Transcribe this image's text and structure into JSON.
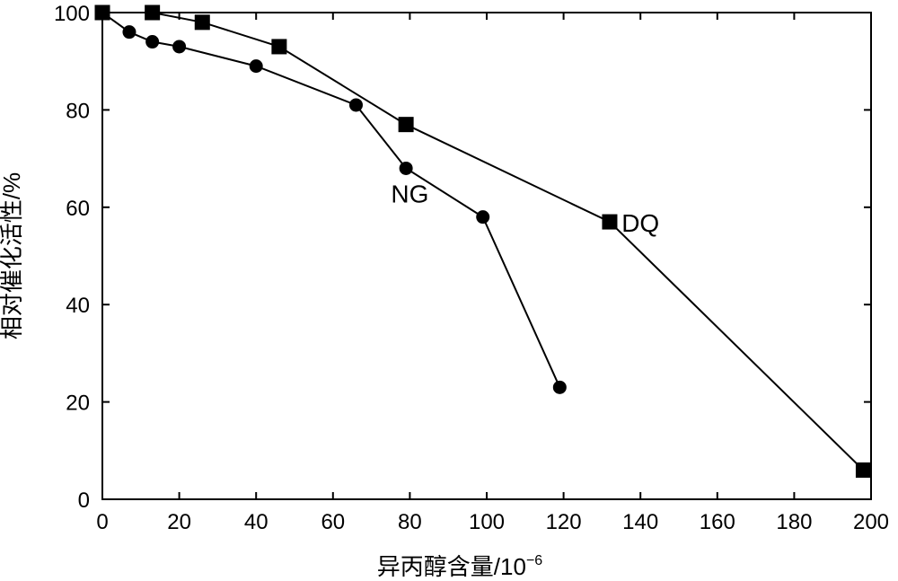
{
  "chart_data": {
    "type": "line",
    "title": "",
    "xlabel": "异丙醇含量/10",
    "xlabel_superscript": "−6",
    "ylabel": "相对催化活性/%",
    "xlim": [
      0,
      200
    ],
    "ylim": [
      0,
      100
    ],
    "x_ticks": [
      0,
      20,
      40,
      60,
      80,
      100,
      120,
      140,
      160,
      180,
      200
    ],
    "x_tick_labels": [
      "0",
      "20",
      "40",
      "60",
      "80",
      "100",
      "120",
      "140",
      "160",
      "180",
      "200"
    ],
    "y_ticks": [
      0,
      20,
      40,
      60,
      80,
      100
    ],
    "y_tick_labels": [
      "0",
      "20",
      "40",
      "60",
      "80",
      "100"
    ],
    "grid": false,
    "series": [
      {
        "name": "NG",
        "marker": "circle",
        "color": "#000000",
        "label_anchor": [
          80,
          61
        ],
        "x": [
          0,
          7,
          13,
          20,
          40,
          66,
          79,
          99,
          119
        ],
        "y": [
          100,
          96,
          94,
          93,
          89,
          81,
          68,
          58,
          23
        ]
      },
      {
        "name": "DQ",
        "marker": "square",
        "color": "#000000",
        "label_anchor": [
          140,
          55
        ],
        "x": [
          0,
          13,
          26,
          46,
          79,
          132,
          198
        ],
        "y": [
          100,
          100,
          98,
          93,
          77,
          57,
          6
        ]
      }
    ]
  }
}
